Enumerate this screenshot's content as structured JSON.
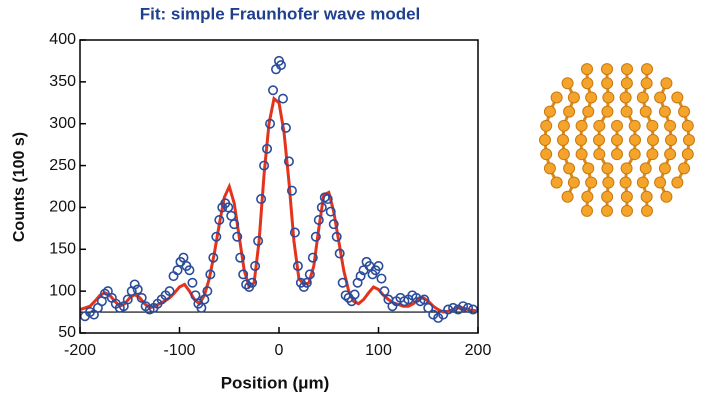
{
  "chart_data": {
    "type": "scatter",
    "title": "Fit: simple Fraunhofer wave model",
    "xlabel": "Position (μm)",
    "ylabel": "Counts (100 s)",
    "xlim": [
      -200,
      200
    ],
    "ylim": [
      50,
      400
    ],
    "xticks": [
      -200,
      -100,
      0,
      100,
      200
    ],
    "yticks": [
      50,
      100,
      150,
      200,
      250,
      300,
      350,
      400
    ],
    "series": [
      {
        "color": "#2a4c9a",
        "x": [
          -195,
          -190,
          -186,
          -182,
          -178,
          -175,
          -172,
          -168,
          -164,
          -160,
          -156,
          -152,
          -148,
          -145,
          -142,
          -138,
          -134,
          -130,
          -126,
          -122,
          -118,
          -114,
          -110,
          -106,
          -102,
          -99,
          -96,
          -93,
          -90,
          -87,
          -84,
          -81,
          -78,
          -75,
          -72,
          -69,
          -66,
          -63,
          -60,
          -57,
          -54,
          -51,
          -48,
          -45,
          -42,
          -39,
          -36,
          -33,
          -30,
          -27,
          -24,
          -21,
          -18,
          -15,
          -12,
          -9,
          -6,
          -3,
          0,
          2,
          4,
          7,
          10,
          13,
          16,
          19,
          22,
          25,
          28,
          31,
          34,
          37,
          40,
          43,
          46,
          49,
          52,
          55,
          58,
          61,
          64,
          67,
          70,
          73,
          76,
          79,
          82,
          85,
          88,
          91,
          94,
          97,
          100,
          103,
          106,
          110,
          114,
          118,
          122,
          126,
          130,
          134,
          138,
          142,
          146,
          150,
          155,
          160,
          165,
          170,
          175,
          180,
          185,
          190,
          195
        ],
        "values": [
          70,
          75,
          72,
          80,
          88,
          97,
          100,
          92,
          85,
          80,
          82,
          90,
          100,
          108,
          102,
          92,
          82,
          78,
          80,
          85,
          90,
          95,
          100,
          118,
          125,
          135,
          140,
          130,
          125,
          110,
          95,
          85,
          80,
          90,
          100,
          120,
          140,
          165,
          185,
          200,
          205,
          200,
          190,
          180,
          165,
          140,
          120,
          108,
          105,
          110,
          130,
          160,
          210,
          250,
          270,
          300,
          340,
          365,
          375,
          370,
          330,
          295,
          255,
          220,
          170,
          130,
          110,
          105,
          110,
          120,
          140,
          165,
          185,
          200,
          212,
          210,
          195,
          180,
          165,
          145,
          110,
          95,
          92,
          88,
          96,
          110,
          118,
          125,
          135,
          130,
          120,
          125,
          130,
          115,
          100,
          90,
          82,
          88,
          92,
          88,
          90,
          95,
          92,
          88,
          90,
          80,
          72,
          68,
          72,
          78,
          80,
          78,
          82,
          80,
          78
        ]
      }
    ],
    "fit": {
      "color": "#e5321c",
      "x": [
        -200,
        -195,
        -190,
        -185,
        -180,
        -175,
        -170,
        -165,
        -160,
        -155,
        -150,
        -145,
        -140,
        -135,
        -130,
        -125,
        -120,
        -115,
        -110,
        -105,
        -100,
        -95,
        -90,
        -85,
        -80,
        -75,
        -70,
        -65,
        -60,
        -55,
        -50,
        -45,
        -40,
        -35,
        -30,
        -25,
        -20,
        -15,
        -10,
        -5,
        0,
        5,
        10,
        15,
        20,
        25,
        30,
        35,
        40,
        45,
        50,
        55,
        60,
        65,
        70,
        75,
        80,
        85,
        90,
        95,
        100,
        105,
        110,
        115,
        120,
        125,
        130,
        135,
        140,
        145,
        150,
        155,
        160,
        165,
        170,
        175,
        180,
        185,
        190,
        195,
        200
      ],
      "values": [
        78,
        80,
        82,
        88,
        95,
        98,
        95,
        88,
        82,
        85,
        92,
        96,
        92,
        85,
        80,
        82,
        85,
        88,
        92,
        98,
        105,
        108,
        100,
        90,
        85,
        95,
        115,
        145,
        180,
        212,
        225,
        205,
        165,
        125,
        105,
        110,
        160,
        240,
        300,
        330,
        325,
        290,
        230,
        160,
        115,
        108,
        110,
        130,
        175,
        215,
        218,
        195,
        160,
        125,
        100,
        88,
        85,
        90,
        98,
        105,
        102,
        95,
        90,
        86,
        84,
        82,
        82,
        85,
        90,
        92,
        88,
        82,
        78,
        75,
        76,
        78,
        80,
        80,
        78,
        77,
        76
      ]
    },
    "baseline": {
      "value": 75,
      "color": "#000000"
    }
  }
}
